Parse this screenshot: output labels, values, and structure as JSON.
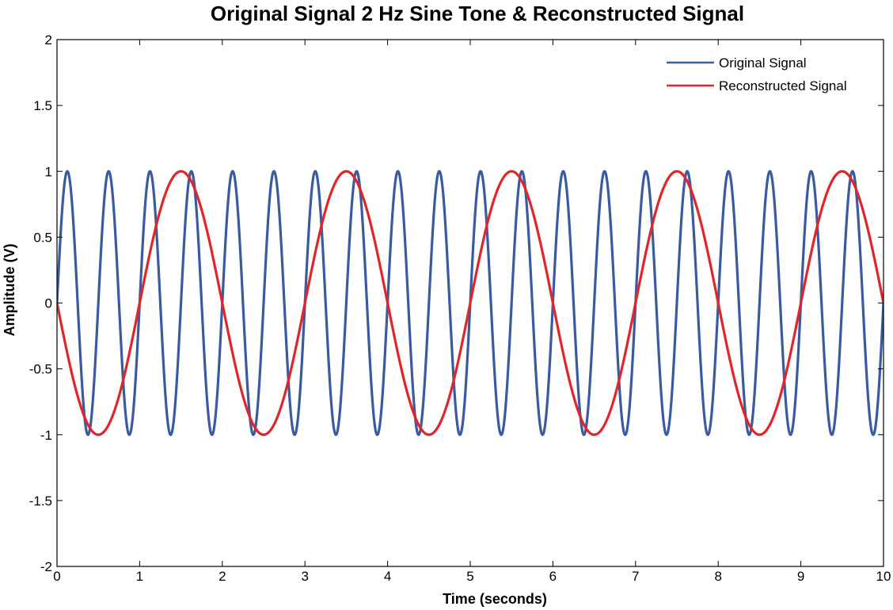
{
  "chart_data": {
    "type": "line",
    "title": "Original Signal 2 Hz Sine Tone & Reconstructed Signal",
    "xlabel": "Time (seconds)",
    "ylabel": "Amplitude (V)",
    "xlim": [
      0,
      10
    ],
    "ylim": [
      -2,
      2
    ],
    "x_ticks": [
      "0",
      "1",
      "2",
      "3",
      "4",
      "5",
      "6",
      "7",
      "8",
      "9",
      "10"
    ],
    "y_ticks": [
      "2",
      "1.5",
      "1",
      "0.5",
      "0",
      "-0.5",
      "-1",
      "-1.5",
      "-2"
    ],
    "grid": false,
    "legend_position": "top-right",
    "series": [
      {
        "name": "Original Signal",
        "color": "#3a5ba0",
        "function": "sine",
        "frequency_hz": 2,
        "amplitude": 1,
        "phase_sign": 1,
        "x_start": 0,
        "x_end": 10
      },
      {
        "name": "Reconstructed Signal",
        "color": "#e0262b",
        "function": "sine",
        "frequency_hz": 0.5,
        "amplitude": 1,
        "phase_sign": -1,
        "x_start": 0,
        "x_end": 10
      }
    ]
  }
}
